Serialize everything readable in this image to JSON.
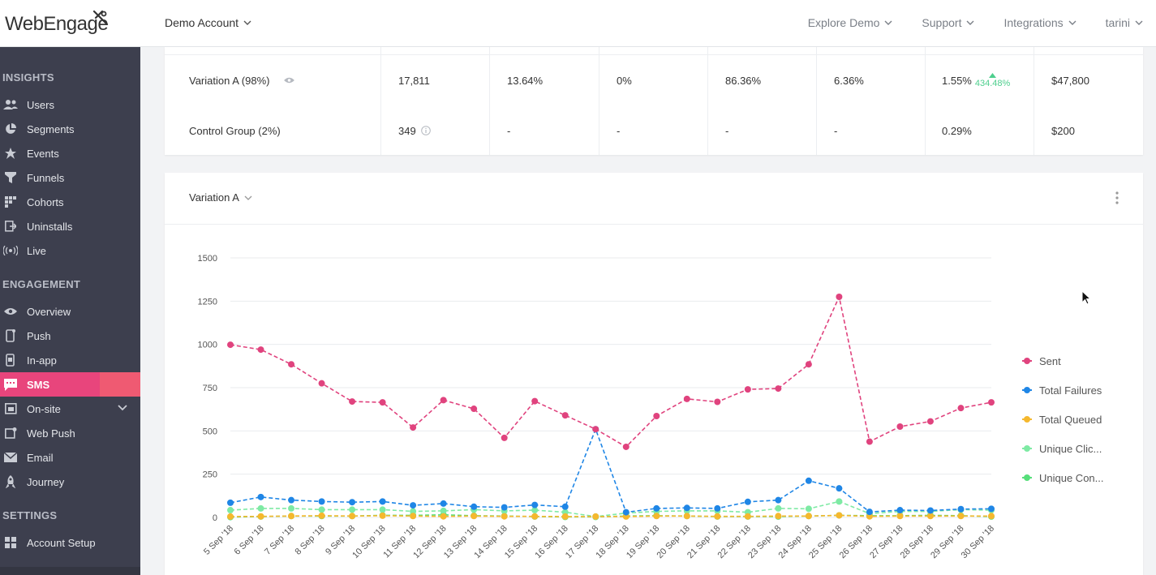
{
  "header": {
    "logo_text": "WebEngage",
    "account": "Demo Account",
    "nav": [
      "Explore Demo",
      "Support",
      "Integrations",
      "tarini"
    ]
  },
  "sidebar": {
    "sections": [
      {
        "title": "INSIGHTS",
        "items": [
          {
            "label": "Users",
            "icon": "users-icon"
          },
          {
            "label": "Segments",
            "icon": "pie-icon"
          },
          {
            "label": "Events",
            "icon": "star-icon"
          },
          {
            "label": "Funnels",
            "icon": "funnel-icon"
          },
          {
            "label": "Cohorts",
            "icon": "grid-icon"
          },
          {
            "label": "Uninstalls",
            "icon": "uninstall-icon"
          },
          {
            "label": "Live",
            "icon": "broadcast-icon"
          }
        ]
      },
      {
        "title": "ENGAGEMENT",
        "items": [
          {
            "label": "Overview",
            "icon": "eye-icon"
          },
          {
            "label": "Push",
            "icon": "phone-icon"
          },
          {
            "label": "In-app",
            "icon": "phone-icon"
          },
          {
            "label": "SMS",
            "icon": "sms-icon",
            "active": true
          },
          {
            "label": "On-site",
            "icon": "window-icon",
            "expandable": true
          },
          {
            "label": "Web Push",
            "icon": "browser-icon"
          },
          {
            "label": "Email",
            "icon": "mail-icon"
          },
          {
            "label": "Journey",
            "icon": "rocket-icon"
          }
        ]
      },
      {
        "title": "SETTINGS",
        "items": [
          {
            "label": "Account Setup",
            "icon": "grid-icon"
          }
        ]
      }
    ]
  },
  "table": {
    "rows": [
      {
        "name": "Variation A (98%)",
        "cells": [
          "17,811",
          "13.64%",
          "0%",
          "86.36%",
          "6.36%",
          "1.55%",
          "$47,800"
        ],
        "lift": "434.48%"
      },
      {
        "name": "Control Group (2%)",
        "cells": [
          "349",
          "-",
          "-",
          "-",
          "-",
          "0.29%",
          "$200"
        ]
      }
    ]
  },
  "chart_card": {
    "variant": "Variation A"
  },
  "colors": {
    "sent": "#e0437e",
    "failures": "#1f86e6",
    "queued": "#f5b82e",
    "clicks": "#7eeaa4",
    "conversions": "#56df7a",
    "sms_active": "#e8457c"
  },
  "chart_data": {
    "type": "line",
    "x": [
      "5 Sep '18",
      "6 Sep '18",
      "7 Sep '18",
      "8 Sep '18",
      "9 Sep '18",
      "10 Sep '18",
      "11 Sep '18",
      "12 Sep '18",
      "13 Sep '18",
      "14 Sep '18",
      "15 Sep '18",
      "16 Sep '18",
      "17 Sep '18",
      "18 Sep '18",
      "19 Sep '18",
      "20 Sep '18",
      "21 Sep '18",
      "22 Sep '18",
      "23 Sep '18",
      "24 Sep '18",
      "25 Sep '18",
      "26 Sep '18",
      "27 Sep '18",
      "28 Sep '18",
      "29 Sep '18",
      "30 Sep '18"
    ],
    "yticks": [
      0,
      250,
      500,
      750,
      1000,
      1250,
      1500
    ],
    "ylim": [
      0,
      1500
    ],
    "grid": true,
    "legend": "right",
    "series": [
      {
        "name": "Sent",
        "color": "#e0437e",
        "values": [
          998,
          970,
          885,
          775,
          670,
          665,
          520,
          678,
          628,
          460,
          672,
          590,
          510,
          408,
          586,
          685,
          668,
          740,
          745,
          885,
          1275,
          438,
          525,
          555,
          632,
          665
        ]
      },
      {
        "name": "Total Failures",
        "color": "#1f86e6",
        "values": [
          85,
          118,
          100,
          92,
          88,
          92,
          70,
          80,
          62,
          58,
          72,
          62,
          510,
          30,
          52,
          55,
          52,
          90,
          100,
          212,
          168,
          32,
          42,
          40,
          48,
          50
        ]
      },
      {
        "name": "Total Queued",
        "color": "#f5b82e",
        "values": [
          5,
          6,
          8,
          10,
          8,
          10,
          8,
          6,
          8,
          6,
          6,
          5,
          5,
          5,
          8,
          8,
          6,
          6,
          8,
          8,
          12,
          6,
          8,
          8,
          8,
          8
        ]
      },
      {
        "name": "Unique Clic...",
        "color": "#7eeaa4",
        "values": [
          42,
          52,
          52,
          45,
          45,
          45,
          35,
          38,
          45,
          38,
          42,
          30,
          5,
          25,
          35,
          38,
          38,
          30,
          52,
          50,
          92,
          22,
          35,
          35,
          45,
          42
        ]
      },
      {
        "name": "Unique Con...",
        "color": "#56df7a",
        "values": [
          2,
          5,
          8,
          8,
          8,
          12,
          12,
          15,
          10,
          8,
          5,
          3,
          3,
          8,
          10,
          8,
          5,
          5,
          5,
          8,
          12,
          10,
          10,
          12,
          10,
          5
        ]
      }
    ]
  }
}
